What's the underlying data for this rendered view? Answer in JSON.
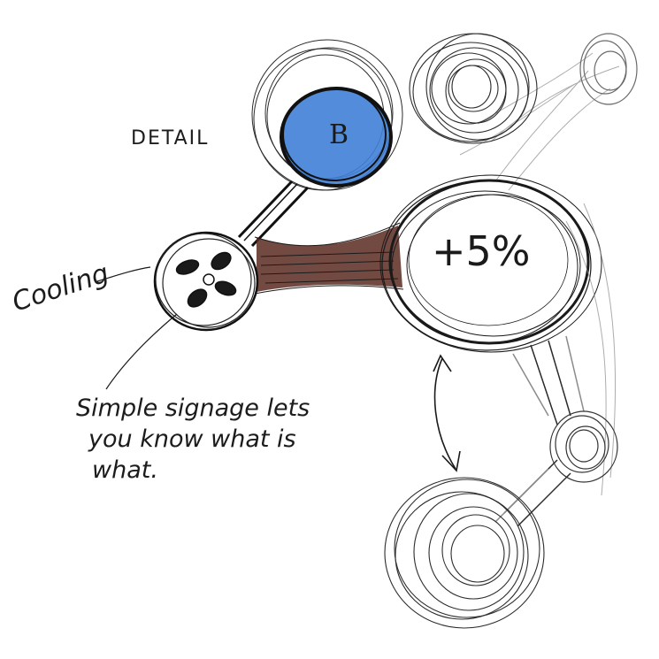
{
  "labels": {
    "detail": "DETAIL",
    "cooling": "Cooling",
    "node_b": "B",
    "percent": "+5%",
    "note_line_1": "Simple signage lets",
    "note_line_2": "you know what is",
    "note_line_3": "what."
  },
  "colors": {
    "ink": "#1c1c1c",
    "pencil": "#8a8a8a",
    "blue_fill": "#3f7fd6",
    "brown_link": "#5a2a20"
  },
  "icons": {
    "cooling_node": "fan-icon",
    "detail_node": "b-icon",
    "boost_node": "percent-icon",
    "direction": "double-arrow-icon"
  }
}
